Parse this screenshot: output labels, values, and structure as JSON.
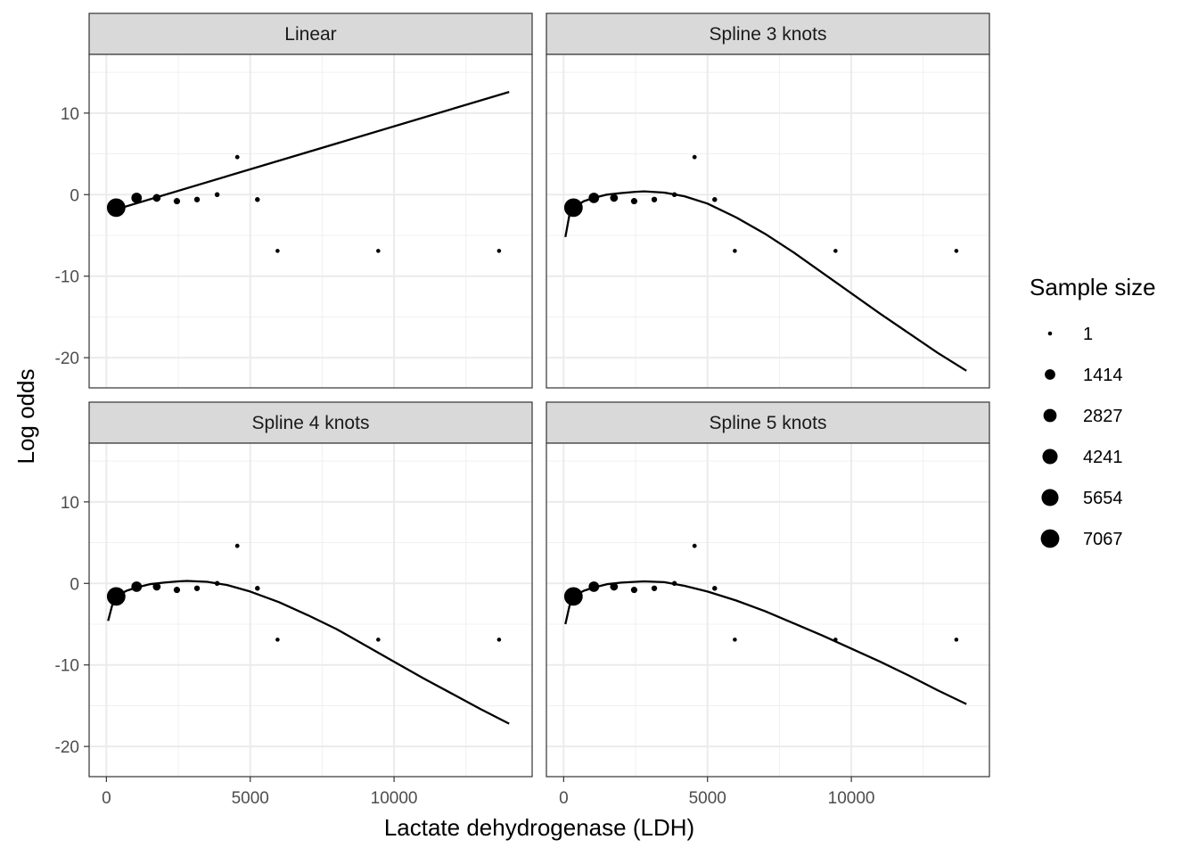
{
  "chart_data": {
    "type": "scatter",
    "xlabel": "Lactate dehydrogenase (LDH)",
    "ylabel": "Log odds",
    "xlim": [
      -600,
      14800
    ],
    "ylim": [
      -23.7,
      17.2
    ],
    "x_ticks": [
      0,
      5000,
      10000
    ],
    "x_tick_labels": [
      "0",
      "5000",
      "10000"
    ],
    "y_ticks": [
      10,
      0,
      -10,
      -20
    ],
    "y_tick_labels": [
      "10",
      "0",
      "-10",
      "-20"
    ],
    "grid": true,
    "legend_position": "right",
    "legend": {
      "title": "Sample size",
      "entries": [
        {
          "label": "1",
          "value": 1
        },
        {
          "label": "1414",
          "value": 1414
        },
        {
          "label": "2827",
          "value": 2827
        },
        {
          "label": "4241",
          "value": 4241
        },
        {
          "label": "5654",
          "value": 5654
        },
        {
          "label": "7067",
          "value": 7067
        }
      ]
    },
    "points": [
      {
        "x": 340,
        "y": -1.6,
        "n": 7067
      },
      {
        "x": 1050,
        "y": -0.4,
        "n": 1414
      },
      {
        "x": 1750,
        "y": -0.4,
        "n": 500
      },
      {
        "x": 2450,
        "y": -0.8,
        "n": 200
      },
      {
        "x": 3150,
        "y": -0.6,
        "n": 100
      },
      {
        "x": 3850,
        "y": 0.0,
        "n": 30
      },
      {
        "x": 4550,
        "y": 4.6,
        "n": 5
      },
      {
        "x": 5250,
        "y": -0.6,
        "n": 30
      },
      {
        "x": 5950,
        "y": -6.9,
        "n": 1
      },
      {
        "x": 9450,
        "y": -6.9,
        "n": 1
      },
      {
        "x": 13650,
        "y": -6.9,
        "n": 1
      }
    ],
    "panels": [
      {
        "title": "Linear",
        "curve": [
          [
            60,
            -2.1
          ],
          [
            14000,
            12.6
          ]
        ]
      },
      {
        "title": "Spline 3 knots",
        "curve": [
          [
            60,
            -5.2
          ],
          [
            200,
            -2.5
          ],
          [
            340,
            -1.6
          ],
          [
            700,
            -0.8
          ],
          [
            1050,
            -0.4
          ],
          [
            1500,
            0.0
          ],
          [
            2000,
            0.2
          ],
          [
            2500,
            0.35
          ],
          [
            2800,
            0.4
          ],
          [
            3500,
            0.25
          ],
          [
            4200,
            -0.2
          ],
          [
            5000,
            -1.1
          ],
          [
            6000,
            -2.8
          ],
          [
            7000,
            -4.8
          ],
          [
            8000,
            -7.1
          ],
          [
            9000,
            -9.6
          ],
          [
            10000,
            -12.1
          ],
          [
            11000,
            -14.6
          ],
          [
            12000,
            -17.0
          ],
          [
            13000,
            -19.4
          ],
          [
            14000,
            -21.6
          ]
        ]
      },
      {
        "title": "Spline 4 knots",
        "curve": [
          [
            60,
            -4.6
          ],
          [
            200,
            -2.7
          ],
          [
            340,
            -1.6
          ],
          [
            700,
            -0.9
          ],
          [
            1050,
            -0.5
          ],
          [
            1500,
            -0.1
          ],
          [
            2000,
            0.1
          ],
          [
            2500,
            0.25
          ],
          [
            2800,
            0.3
          ],
          [
            3500,
            0.2
          ],
          [
            4200,
            -0.2
          ],
          [
            5000,
            -1.0
          ],
          [
            6000,
            -2.3
          ],
          [
            7000,
            -3.9
          ],
          [
            8000,
            -5.6
          ],
          [
            9000,
            -7.6
          ],
          [
            10000,
            -9.6
          ],
          [
            11000,
            -11.6
          ],
          [
            12000,
            -13.5
          ],
          [
            13000,
            -15.4
          ],
          [
            14000,
            -17.2
          ]
        ]
      },
      {
        "title": "Spline 5 knots",
        "curve": [
          [
            60,
            -5.0
          ],
          [
            200,
            -2.8
          ],
          [
            340,
            -1.6
          ],
          [
            700,
            -0.9
          ],
          [
            1050,
            -0.5
          ],
          [
            1500,
            -0.1
          ],
          [
            2000,
            0.1
          ],
          [
            2500,
            0.2
          ],
          [
            2800,
            0.25
          ],
          [
            3500,
            0.15
          ],
          [
            4200,
            -0.3
          ],
          [
            5000,
            -1.0
          ],
          [
            6000,
            -2.1
          ],
          [
            7000,
            -3.4
          ],
          [
            8000,
            -4.9
          ],
          [
            9000,
            -6.4
          ],
          [
            10000,
            -8.0
          ],
          [
            11000,
            -9.6
          ],
          [
            12000,
            -11.3
          ],
          [
            13000,
            -13.1
          ],
          [
            14000,
            -14.8
          ]
        ]
      }
    ]
  }
}
